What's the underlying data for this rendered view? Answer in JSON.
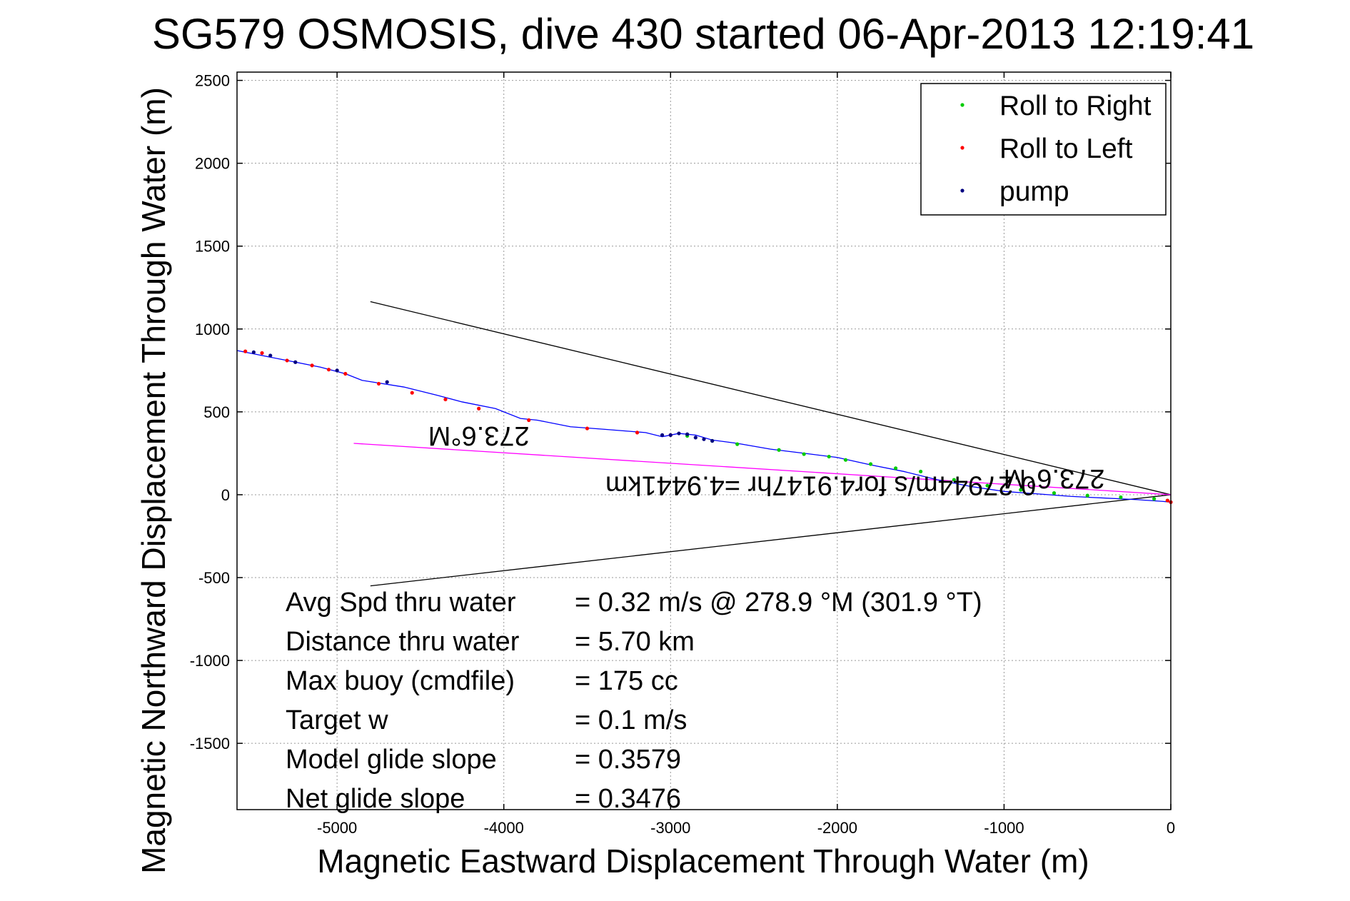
{
  "chart_data": {
    "type": "line",
    "title": "SG579 OSMOSIS, dive 430 started 06-Apr-2013 12:19:41",
    "xlabel": "Magnetic Eastward Displacement Through Water (m)",
    "ylabel": "Magnetic Northward Displacement Through Water (m)",
    "xlim": [
      -5600,
      0
    ],
    "ylim": [
      -1900,
      2550
    ],
    "xticks": [
      -5000,
      -4000,
      -3000,
      -2000,
      -1000,
      0
    ],
    "yticks": [
      2500,
      2000,
      1500,
      1000,
      500,
      0,
      -500,
      -1000,
      -1500
    ],
    "grid": true,
    "legend_position": "top-right",
    "legend": [
      {
        "label": "Roll to Right",
        "color": "#00cc00"
      },
      {
        "label": "Roll to Left",
        "color": "#ff0000"
      },
      {
        "label": "pump",
        "color": "#000080"
      }
    ],
    "track": {
      "color": "#0000ff",
      "x": [
        -5600,
        -5500,
        -5300,
        -5100,
        -4950,
        -4850,
        -4600,
        -4400,
        -4250,
        -4050,
        -3900,
        -3800,
        -3600,
        -3400,
        -3150,
        -3050,
        -2950,
        -2850,
        -2750,
        -2600,
        -2400,
        -2200,
        -2000,
        -1800,
        -1600,
        -1400,
        -1200,
        -1000,
        -800,
        -600,
        -400,
        -200,
        -50,
        0
      ],
      "y": [
        870,
        850,
        810,
        770,
        730,
        690,
        650,
        600,
        560,
        520,
        460,
        450,
        410,
        395,
        375,
        350,
        370,
        360,
        330,
        310,
        275,
        250,
        225,
        180,
        140,
        90,
        50,
        20,
        5,
        -10,
        -20,
        -30,
        -40,
        -45
      ]
    },
    "roll_right": {
      "x": [
        -2900,
        -2750,
        -2600,
        -2350,
        -2200,
        -2050,
        -1950,
        -1800,
        -1650,
        -1500,
        -1300,
        -1100,
        -900,
        -700,
        -500,
        -300,
        -100,
        -20
      ],
      "y": [
        355,
        325,
        305,
        270,
        245,
        230,
        210,
        185,
        160,
        140,
        90,
        55,
        30,
        10,
        -5,
        -15,
        -25,
        -35
      ]
    },
    "roll_left": {
      "x": [
        -5550,
        -5450,
        -5300,
        -5150,
        -5050,
        -4950,
        -4750,
        -4550,
        -4350,
        -4150,
        -3850,
        -3500,
        -3200,
        -3000,
        -20,
        0
      ],
      "y": [
        865,
        855,
        810,
        780,
        755,
        730,
        670,
        615,
        575,
        520,
        450,
        400,
        375,
        360,
        -35,
        -45
      ]
    },
    "pump": {
      "x": [
        -5500,
        -5400,
        -5250,
        -5000,
        -4700,
        -3050,
        -3000,
        -2950,
        -2900,
        -2850,
        -2800,
        -2750
      ],
      "y": [
        860,
        840,
        800,
        750,
        680,
        360,
        360,
        370,
        365,
        345,
        335,
        325
      ]
    },
    "cone_lines": [
      {
        "color": "#000000",
        "x": [
          -4800,
          0
        ],
        "y": [
          1165,
          0
        ]
      },
      {
        "color": "#000000",
        "x": [
          -4800,
          0
        ],
        "y": [
          -550,
          0
        ]
      }
    ],
    "heading_line": {
      "color": "#ff00ff",
      "x": [
        -4900,
        0
      ],
      "y": [
        310,
        0
      ]
    },
    "annotations": [
      {
        "text": "273.6°M",
        "x": -4150,
        "y": 410,
        "rotate": 180
      },
      {
        "text": "0.27944m/s for4.9147hr =4.9441km",
        "x": -2100,
        "y": 110,
        "rotate": 180
      },
      {
        "text": "273.6°M",
        "x": -700,
        "y": 150,
        "rotate": 180
      }
    ],
    "summary": [
      {
        "label": "Avg Spd thru water",
        "value": "=  0.32 m/s @ 278.9 °M (301.9 °T)"
      },
      {
        "label": "Distance thru water",
        "value": "=  5.70 km"
      },
      {
        "label": "Max buoy (cmdfile)",
        "value": "= 175 cc"
      },
      {
        "label": "Target w",
        "value": "= 0.1 m/s"
      },
      {
        "label": "Model glide slope",
        "value": "= 0.3579"
      },
      {
        "label": "Net glide slope",
        "value": "= 0.3476"
      }
    ]
  }
}
